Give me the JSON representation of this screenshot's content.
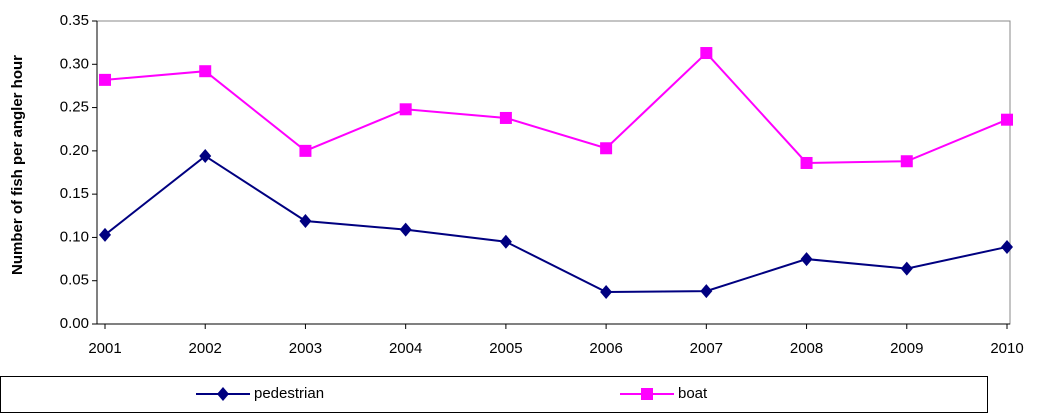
{
  "chart_data": {
    "type": "line",
    "y_label": "Number of fish per angler hour",
    "categories": [
      "2001",
      "2002",
      "2003",
      "2004",
      "2005",
      "2006",
      "2007",
      "2008",
      "2009",
      "2010"
    ],
    "series": [
      {
        "name": "pedestrian",
        "color": "#000080",
        "marker": "diamond",
        "values": [
          0.103,
          0.194,
          0.119,
          0.109,
          0.095,
          0.037,
          0.038,
          0.075,
          0.064,
          0.089
        ]
      },
      {
        "name": "boat",
        "color": "#ff00ff",
        "marker": "square",
        "values": [
          0.282,
          0.292,
          0.2,
          0.248,
          0.238,
          0.203,
          0.313,
          0.186,
          0.188,
          0.236
        ]
      }
    ],
    "ylim": [
      0,
      0.35
    ],
    "yticks": [
      {
        "value": 0,
        "label": "0.00"
      },
      0.05,
      {
        "value": 0.1,
        "label": "0.10"
      },
      0.15,
      {
        "value": 0.2,
        "label": "0.20"
      },
      0.25,
      {
        "value": 0.3,
        "label": "0.30"
      },
      0.35
    ],
    "legend": "bottom"
  }
}
